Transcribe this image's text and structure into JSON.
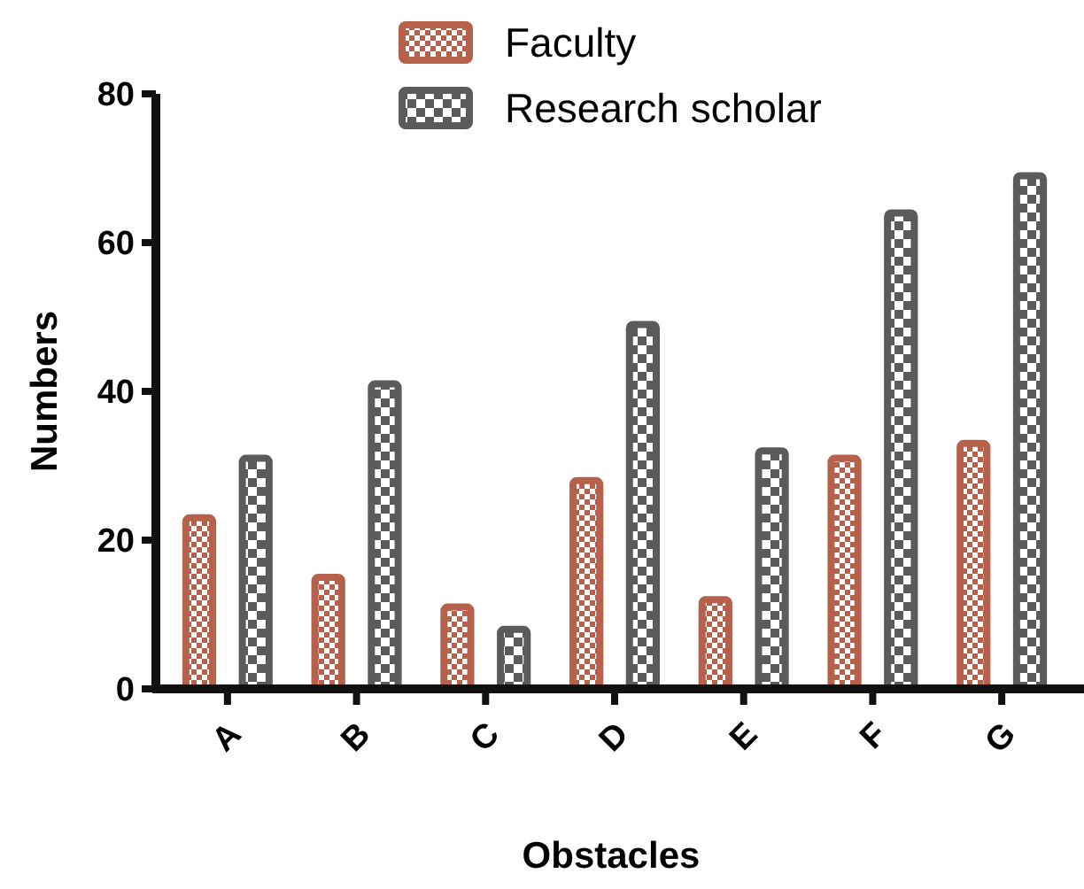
{
  "chart_data": {
    "type": "bar",
    "xlabel": "Obstacles",
    "ylabel": "Numbers",
    "categories": [
      "A",
      "B",
      "C",
      "D",
      "E",
      "F",
      "G"
    ],
    "series": [
      {
        "name": "Faculty",
        "color": "#b5614b",
        "values": [
          23,
          15,
          11,
          28,
          12,
          31,
          33
        ]
      },
      {
        "name": "Research scholar",
        "color": "#5b5b5b",
        "values": [
          31,
          41,
          8,
          49,
          32,
          64,
          69
        ]
      }
    ],
    "ylim": [
      0,
      80
    ],
    "yticks": [
      0,
      20,
      40,
      60,
      80
    ],
    "grid": false,
    "legend": "top"
  }
}
